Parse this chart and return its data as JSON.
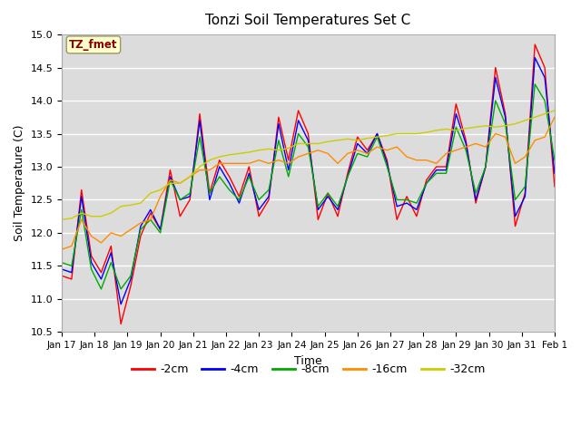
{
  "title": "Tonzi Soil Temperatures Set C",
  "xlabel": "Time",
  "ylabel": "Soil Temperature (C)",
  "ylim": [
    10.5,
    15.0
  ],
  "annotation_text": "TZ_fmet",
  "annotation_color": "#8B0000",
  "annotation_bg": "#FFFFCC",
  "legend_entries": [
    "-2cm",
    "-4cm",
    "-8cm",
    "-16cm",
    "-32cm"
  ],
  "line_colors": [
    "#FF0000",
    "#0000FF",
    "#00AA00",
    "#FF8C00",
    "#CCCC00"
  ],
  "x_tick_labels": [
    "Jan 17",
    "Jan 18",
    "Jan 19",
    "Jan 20",
    "Jan 21",
    "Jan 22",
    "Jan 23",
    "Jan 24",
    "Jan 25",
    "Jan 26",
    "Jan 27",
    "Jan 28",
    "Jan 29",
    "Jan 30",
    "Jan 31",
    "Feb 1"
  ],
  "background_color": "#DCDCDC",
  "plot_bg": "#DCDCDC",
  "grid_color": "#FFFFFF",
  "series_2cm": [
    11.35,
    11.3,
    12.65,
    11.65,
    11.4,
    11.8,
    10.62,
    11.2,
    11.95,
    12.3,
    12.05,
    12.95,
    12.25,
    12.5,
    13.8,
    12.6,
    13.1,
    12.85,
    12.55,
    13.0,
    12.25,
    12.5,
    13.75,
    13.1,
    13.85,
    13.5,
    12.2,
    12.6,
    12.25,
    12.9,
    13.45,
    13.25,
    13.5,
    13.1,
    12.2,
    12.55,
    12.25,
    12.8,
    13.0,
    13.0,
    13.95,
    13.4,
    12.45,
    13.0,
    14.5,
    13.8,
    12.1,
    12.6,
    14.85,
    14.5,
    12.7
  ],
  "series_4cm": [
    11.45,
    11.4,
    12.55,
    11.55,
    11.3,
    11.7,
    10.92,
    11.3,
    12.1,
    12.35,
    12.05,
    12.85,
    12.5,
    12.55,
    13.7,
    12.5,
    13.0,
    12.75,
    12.45,
    12.9,
    12.35,
    12.55,
    13.65,
    12.95,
    13.7,
    13.4,
    12.35,
    12.55,
    12.35,
    12.85,
    13.35,
    13.2,
    13.5,
    13.05,
    12.4,
    12.45,
    12.35,
    12.75,
    12.95,
    12.95,
    13.8,
    13.35,
    12.5,
    13.0,
    14.35,
    13.75,
    12.25,
    12.55,
    14.65,
    14.35,
    12.9
  ],
  "series_8cm": [
    11.55,
    11.5,
    12.35,
    11.45,
    11.15,
    11.55,
    11.15,
    11.35,
    12.05,
    12.2,
    12.0,
    12.8,
    12.5,
    12.6,
    13.45,
    12.6,
    12.85,
    12.65,
    12.5,
    12.85,
    12.5,
    12.65,
    13.4,
    12.85,
    13.5,
    13.3,
    12.4,
    12.6,
    12.4,
    12.85,
    13.2,
    13.15,
    13.45,
    13.0,
    12.5,
    12.5,
    12.45,
    12.75,
    12.9,
    12.9,
    13.6,
    13.25,
    12.6,
    13.0,
    14.0,
    13.65,
    12.5,
    12.7,
    14.25,
    14.0,
    13.1
  ],
  "series_16cm": [
    11.75,
    11.8,
    12.2,
    11.95,
    11.85,
    12.0,
    11.95,
    12.05,
    12.15,
    12.2,
    12.55,
    12.8,
    12.75,
    12.85,
    12.95,
    12.95,
    13.05,
    13.05,
    13.05,
    13.05,
    13.1,
    13.05,
    13.1,
    13.05,
    13.15,
    13.2,
    13.25,
    13.2,
    13.05,
    13.2,
    13.25,
    13.2,
    13.3,
    13.25,
    13.3,
    13.15,
    13.1,
    13.1,
    13.05,
    13.2,
    13.25,
    13.3,
    13.35,
    13.3,
    13.5,
    13.45,
    13.05,
    13.15,
    13.4,
    13.45,
    13.75
  ],
  "series_32cm": [
    12.2,
    12.22,
    12.3,
    12.25,
    12.25,
    12.3,
    12.4,
    12.42,
    12.45,
    12.6,
    12.65,
    12.75,
    12.75,
    12.85,
    13.0,
    13.1,
    13.15,
    13.18,
    13.2,
    13.22,
    13.25,
    13.27,
    13.25,
    13.28,
    13.35,
    13.35,
    13.35,
    13.38,
    13.4,
    13.42,
    13.4,
    13.43,
    13.45,
    13.47,
    13.5,
    13.5,
    13.5,
    13.52,
    13.55,
    13.57,
    13.55,
    13.58,
    13.6,
    13.62,
    13.6,
    13.62,
    13.65,
    13.7,
    13.75,
    13.8,
    13.85
  ]
}
